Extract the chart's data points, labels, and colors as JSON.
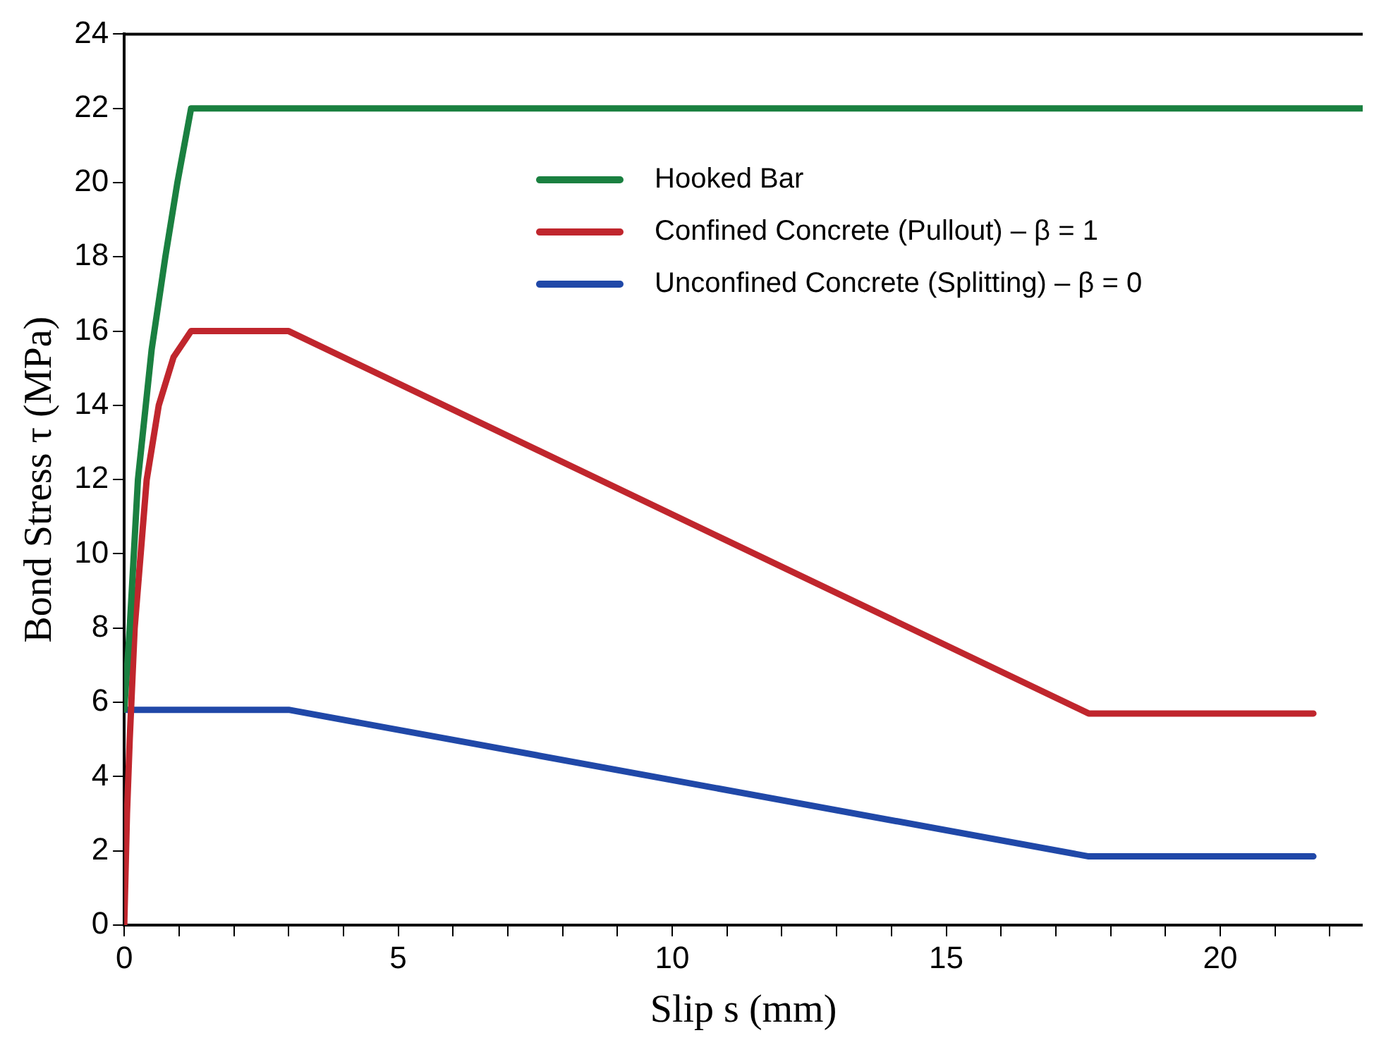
{
  "chart_data": {
    "type": "line",
    "xlabel": "Slip s (mm)",
    "ylabel": "Bond Stress τ (MPa)",
    "xlim": [
      0,
      22.6
    ],
    "ylim": [
      0,
      24
    ],
    "xticks": [
      0,
      {
        "value": 1,
        "label": null
      },
      {
        "value": 2,
        "label": null
      },
      {
        "value": 3,
        "label": null
      },
      {
        "value": 4,
        "label": null
      },
      5,
      {
        "value": 6,
        "label": null
      },
      {
        "value": 7,
        "label": null
      },
      {
        "value": 8,
        "label": null
      },
      {
        "value": 9,
        "label": null
      },
      10,
      {
        "value": 11,
        "label": null
      },
      {
        "value": 12,
        "label": null
      },
      {
        "value": 13,
        "label": null
      },
      {
        "value": 14,
        "label": null
      },
      15,
      {
        "value": 16,
        "label": null
      },
      {
        "value": 17,
        "label": null
      },
      {
        "value": 18,
        "label": null
      },
      {
        "value": 19,
        "label": null
      },
      20,
      {
        "value": 21,
        "label": null
      },
      {
        "value": 22,
        "label": null
      }
    ],
    "yticks": [
      0,
      2,
      4,
      6,
      8,
      10,
      12,
      14,
      16,
      18,
      20,
      22,
      24
    ],
    "grid": false,
    "legend": "top right",
    "marker": "none",
    "line_style": "solid",
    "series": [
      {
        "name": "Hooked Bar",
        "color": "#1a8040",
        "x": [
          0,
          0.1,
          0.25,
          0.5,
          0.75,
          0.97,
          1.22,
          22.6
        ],
        "values": [
          5.8,
          8,
          12,
          15.5,
          18,
          20,
          22,
          22
        ]
      },
      {
        "name": "Confined Concrete (Pullout) – β = 1",
        "color": "#c0262d",
        "x": [
          0,
          0.05,
          0.1,
          0.19,
          0.41,
          0.63,
          0.9,
          1.22,
          3,
          17.6,
          21.7
        ],
        "values": [
          0,
          3,
          5,
          8,
          12,
          14,
          15.3,
          16,
          16,
          5.7,
          5.7
        ]
      },
      {
        "name": "Unconfined Concrete (Splitting) – β = 0",
        "color": "#2048a8",
        "x": [
          0,
          3,
          17.6,
          21.7
        ],
        "values": [
          5.8,
          5.8,
          1.85,
          1.85
        ]
      }
    ]
  }
}
